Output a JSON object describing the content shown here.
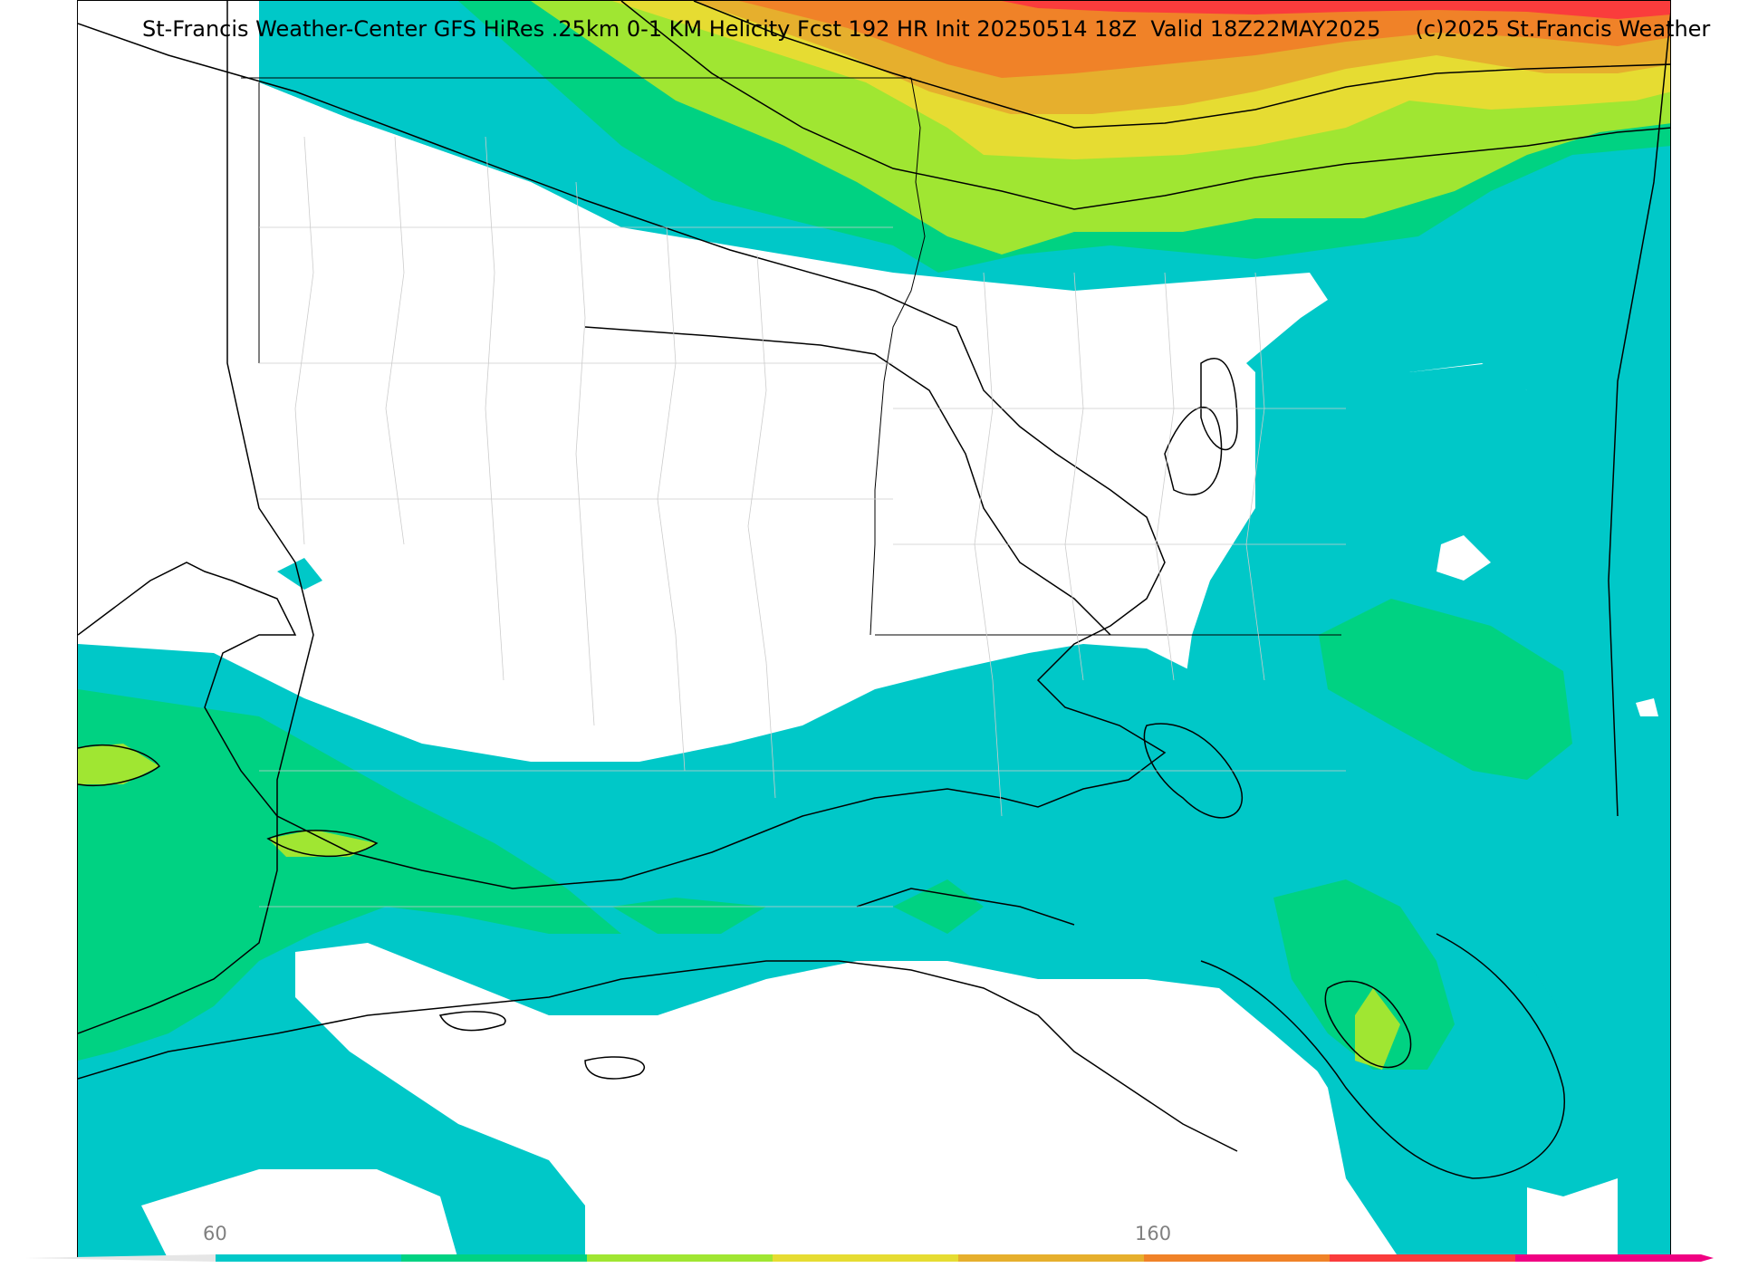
{
  "title": "St-Francis Weather-Center GFS HiRes .25km 0-1 KM Helicity Fcst 192 HR Init 20250514 18Z  Valid 18Z22MAY2025     (c)2025 St.Francis Weather",
  "colorbar": {
    "tick_labels": [
      "60",
      "160"
    ],
    "colors": [
      "#00c8c8",
      "#00d282",
      "#a0e632",
      "#e6dc32",
      "#e6af2d",
      "#f08228",
      "#fa3c3c",
      "#f00082"
    ]
  },
  "map": {
    "type": "filled contour forecast map",
    "field_colors": {
      "teal": "#00c8c8",
      "green": "#00d282",
      "lime": "#a0e632",
      "yellow": "#e6dc32",
      "gold": "#e6af2d",
      "orange": "#f08228",
      "red": "#fa3c3c"
    }
  }
}
